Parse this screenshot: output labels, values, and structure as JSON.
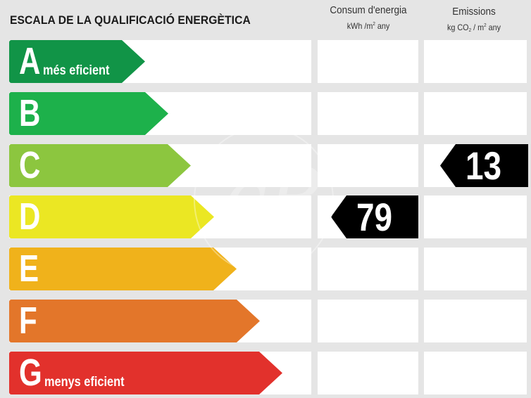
{
  "title": "ESCALA DE LA QUALIFICACIÓ ENERGÈTICA",
  "columns": {
    "consum": {
      "title": "Consum d'energia",
      "unit_prefix": "kWh /m",
      "unit_exp": "2",
      "unit_suffix": " any"
    },
    "emissions": {
      "title": "Emissions",
      "unit_prefix": "kg CO",
      "unit_sub": "2",
      "unit_mid": " / m",
      "unit_exp": "2",
      "unit_suffix": " any"
    }
  },
  "rows": [
    {
      "letter": "A",
      "note": "més eficient",
      "color": "#119447"
    },
    {
      "letter": "B",
      "note": "",
      "color": "#1db14b"
    },
    {
      "letter": "C",
      "note": "",
      "color": "#8cc63f"
    },
    {
      "letter": "D",
      "note": "",
      "color": "#ebe723"
    },
    {
      "letter": "E",
      "note": "",
      "color": "#f0b21b"
    },
    {
      "letter": "F",
      "note": "",
      "color": "#e3762a"
    },
    {
      "letter": "G",
      "note": "menys eficient",
      "color": "#e2312c"
    }
  ],
  "ratings": {
    "consum": {
      "letter": "D",
      "value": "79"
    },
    "emissions": {
      "letter": "C",
      "value": "13"
    }
  },
  "watermark": "cP"
}
